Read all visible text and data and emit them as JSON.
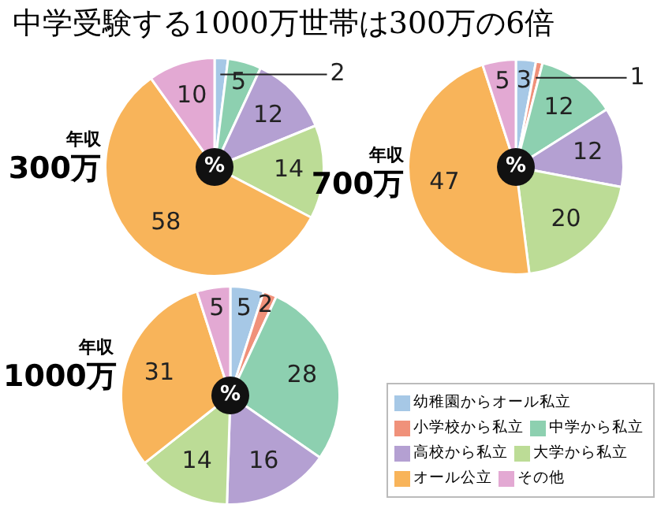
{
  "chart_data": [
    {
      "type": "pie",
      "title": "中学受験する1000万世帯は300万の6倍",
      "annotations": [
        "年収",
        "300万",
        "%"
      ],
      "categories": [
        null,
        null,
        null,
        null,
        null,
        null,
        null
      ],
      "values": [
        2,
        0,
        5,
        12,
        14,
        58,
        10
      ],
      "value_labels": [
        "2",
        null,
        "5",
        "12",
        "14",
        "58",
        "10"
      ],
      "colors": [
        "#a6c8e6",
        "#f0917a",
        "#8dd0b0",
        "#b4a0d2",
        "#bcdc96",
        "#f8b45a",
        "#e3a9d3"
      ],
      "legend": false
    },
    {
      "type": "pie",
      "annotations": [
        "年収",
        "700万",
        "%"
      ],
      "categories": [
        null,
        null,
        null,
        null,
        null,
        null,
        null
      ],
      "values": [
        3,
        1,
        12,
        12,
        20,
        47,
        5
      ],
      "data_labels": true,
      "colors": [
        "#a6c8e6",
        "#f0917a",
        "#8dd0b0",
        "#b4a0d2",
        "#bcdc96",
        "#f8b45a",
        "#e3a9d3"
      ],
      "legend": false
    },
    {
      "type": "pie",
      "annotations": [
        "年収",
        "1000万",
        "%"
      ],
      "categories": [
        "幼稚園からオール私立",
        "小学校から私立",
        "中学から私立",
        "高校から私立",
        "大学から私立",
        "オール公立",
        "その他"
      ],
      "values": [
        5,
        2,
        28,
        16,
        14,
        31,
        5
      ],
      "data_labels": true,
      "colors": [
        "#a6c8e6",
        "#f0917a",
        "#8dd0b0",
        "#b4a0d2",
        "#bcdc96",
        "#f8b45a",
        "#e3a9d3"
      ],
      "legend": "bottom right"
    }
  ]
}
